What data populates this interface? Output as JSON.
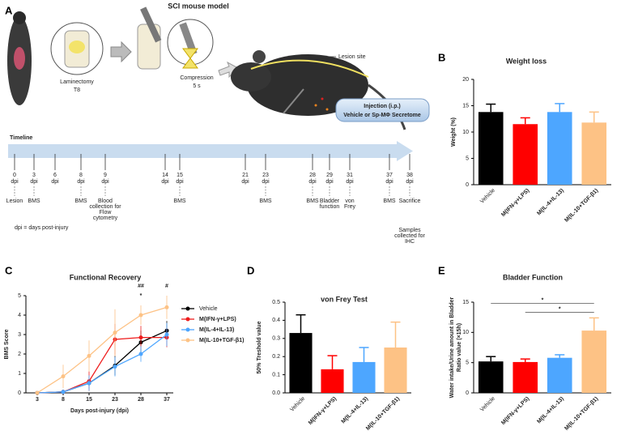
{
  "figure": {
    "panel_labels": [
      "A",
      "B",
      "C",
      "D",
      "E"
    ]
  },
  "panel_a": {
    "title": "SCI  mouse model",
    "laminectomy": [
      "Laminectomy",
      "T8"
    ],
    "compression": [
      "Compression",
      "5 s"
    ],
    "lesion_site": "Lesion site",
    "injection_title": "Injection (i.p.)",
    "injection_text": "Vehicle or Sp-MΦ Secretome",
    "timeline_label": "Timeline",
    "unit": "dpi",
    "days": [
      {
        "day": "0",
        "event": [
          "Lesion"
        ],
        "color": "#333333"
      },
      {
        "day": "3",
        "event": [
          "BMS"
        ],
        "color": "#e8821e"
      },
      {
        "day": "6"
      },
      {
        "day": "8",
        "event": [
          "BMS"
        ],
        "color": "#e8821e"
      },
      {
        "day": "9",
        "event": [
          "Blood",
          "collection for",
          "Flow",
          "cytometry"
        ],
        "color": "#e02020"
      },
      {
        "day": "14"
      },
      {
        "day": "15",
        "event": [
          "BMS"
        ],
        "color": "#e8821e"
      },
      {
        "day": "21"
      },
      {
        "day": "23",
        "event": [
          "BMS"
        ],
        "color": "#e8821e"
      },
      {
        "day": "28",
        "event": [
          "BMS"
        ],
        "color": "#e8821e"
      },
      {
        "day": "29",
        "event": [
          "Bladder",
          "function"
        ],
        "color": "#22a035"
      },
      {
        "day": "31",
        "event": [
          "von",
          "Frey"
        ],
        "color": "#e060a0"
      },
      {
        "day": "37",
        "event": [
          "BMS"
        ],
        "color": "#e8821e"
      },
      {
        "day": "38",
        "event": [
          "Sacrifice"
        ],
        "color": "#333333",
        "samples": [
          "Samples",
          "collected for"
        ],
        "samples_highlight": "IHC"
      }
    ],
    "footnote": "dpi = days post-injury"
  },
  "chart_data": [
    {
      "type": "bar",
      "title": "Weight loss",
      "ylabel": [
        "Weight (%)"
      ],
      "categories": [
        "Vehicle",
        "M(IFN-γ+LPS)",
        "M(IL-4+IL-13)",
        "M(IL-10+TGF-β1)"
      ],
      "values": [
        13.8,
        11.5,
        13.8,
        11.8
      ],
      "errors": [
        1.5,
        1.2,
        1.6,
        2.0
      ],
      "colors": [
        "#000000",
        "#ff0000",
        "#4da6ff",
        "#fdc285"
      ],
      "ylim": [
        0,
        20
      ],
      "yticks": [
        0,
        5,
        10,
        15,
        20
      ]
    },
    {
      "type": "line",
      "title": "Functional Recovery",
      "xlabel": "Days post-injury (dpi)",
      "ylabel": [
        "BMS Score"
      ],
      "categories": [
        "3",
        "8",
        "15",
        "23",
        "28",
        "37"
      ],
      "series": [
        {
          "name": "Vehicle",
          "color": "#000000",
          "values": [
            0,
            0.05,
            0.5,
            1.4,
            2.6,
            3.2
          ],
          "errors": [
            0,
            0.1,
            0.3,
            0.5,
            0.6,
            0.5
          ]
        },
        {
          "name": "M(IFN-γ+LPS)",
          "color": "#ee1c1c",
          "values": [
            0,
            0.05,
            0.6,
            2.75,
            2.85,
            2.85
          ],
          "errors": [
            0,
            0.1,
            0.5,
            0.8,
            0.6,
            0.5
          ]
        },
        {
          "name": "M(IL-4+IL-13)",
          "color": "#4da6ff",
          "values": [
            0,
            0.05,
            0.5,
            1.35,
            2.0,
            3.0
          ],
          "errors": [
            0,
            0.1,
            0.4,
            0.5,
            0.4,
            0.6
          ]
        },
        {
          "name": "M(IL-10+TGF-β1)",
          "color": "#fdc285",
          "values": [
            0,
            0.85,
            1.9,
            3.1,
            4.0,
            4.4
          ],
          "errors": [
            0,
            0.6,
            0.8,
            1.2,
            0.5,
            0.6
          ]
        }
      ],
      "annotations": [
        {
          "x": "28",
          "y": 5.5,
          "label": "##"
        },
        {
          "x": "28",
          "y": 5.0,
          "label": "*"
        },
        {
          "x": "37",
          "y": 5.5,
          "label": "#"
        }
      ],
      "ylim": [
        0,
        5
      ],
      "yticks": [
        0,
        1,
        2,
        3,
        4,
        5
      ]
    },
    {
      "type": "bar",
      "title": "von Frey Test",
      "ylabel": [
        "50% Treshold value"
      ],
      "categories": [
        "Vehicle",
        "M(IFN-γ+LPS)",
        "M(IL-4+IL-13)",
        "M(IL-10+TGF-β1)"
      ],
      "values": [
        0.33,
        0.13,
        0.17,
        0.25
      ],
      "errors": [
        0.1,
        0.075,
        0.08,
        0.14
      ],
      "colors": [
        "#000000",
        "#ff0000",
        "#4da6ff",
        "#fdc285"
      ],
      "ylim": [
        0,
        0.5
      ],
      "yticks": [
        {
          "value": 0,
          "label": "0.0"
        },
        0.1,
        0.2,
        0.3,
        0.4,
        0.5
      ]
    },
    {
      "type": "bar",
      "title": "Bladder Function",
      "ylabel": [
        "Water intake/Urine amount in Bladder",
        "Ratio value (×15h)"
      ],
      "categories": [
        "Vehicle",
        "M(IFN-γ+LPS)",
        "M(IL-4+IL-13)",
        "M(IL-10+TGF-β1)"
      ],
      "values": [
        5.2,
        5.1,
        5.8,
        10.3
      ],
      "errors": [
        0.8,
        0.5,
        0.5,
        2.1
      ],
      "colors": [
        "#000000",
        "#ff0000",
        "#4da6ff",
        "#fdc285"
      ],
      "significance": [
        {
          "from": 0,
          "to": 3,
          "y": 14.8,
          "label": "*"
        },
        {
          "from": 1,
          "to": 3,
          "y": 13.3,
          "label": "*"
        }
      ],
      "ylim": [
        0,
        15
      ],
      "yticks": [
        0,
        5,
        10,
        15
      ]
    }
  ]
}
